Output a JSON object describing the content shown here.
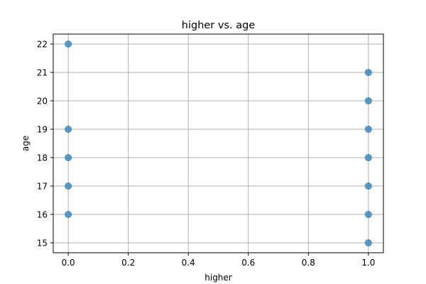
{
  "chart_data": {
    "type": "scatter",
    "title": "higher vs. age",
    "xlabel": "higher",
    "ylabel": "age",
    "xlim": [
      -0.05,
      1.05
    ],
    "ylim": [
      14.65,
      22.35
    ],
    "xticks": [
      0.0,
      0.2,
      0.4,
      0.6,
      0.8,
      1.0
    ],
    "xtick_labels": [
      "0.0",
      "0.2",
      "0.4",
      "0.6",
      "0.8",
      "1.0"
    ],
    "yticks": [
      15,
      16,
      17,
      18,
      19,
      20,
      21,
      22
    ],
    "ytick_labels": [
      "15",
      "16",
      "17",
      "18",
      "19",
      "20",
      "21",
      "22"
    ],
    "grid": true,
    "legend": "none",
    "point_color": "#1f77b4",
    "point_alpha": 0.7,
    "points": [
      {
        "x": 0,
        "y": 22
      },
      {
        "x": 0,
        "y": 19
      },
      {
        "x": 0,
        "y": 18
      },
      {
        "x": 0,
        "y": 17
      },
      {
        "x": 0,
        "y": 16
      },
      {
        "x": 1,
        "y": 21
      },
      {
        "x": 1,
        "y": 20
      },
      {
        "x": 1,
        "y": 19
      },
      {
        "x": 1,
        "y": 18
      },
      {
        "x": 1,
        "y": 17
      },
      {
        "x": 1,
        "y": 16
      },
      {
        "x": 1,
        "y": 15
      }
    ]
  }
}
